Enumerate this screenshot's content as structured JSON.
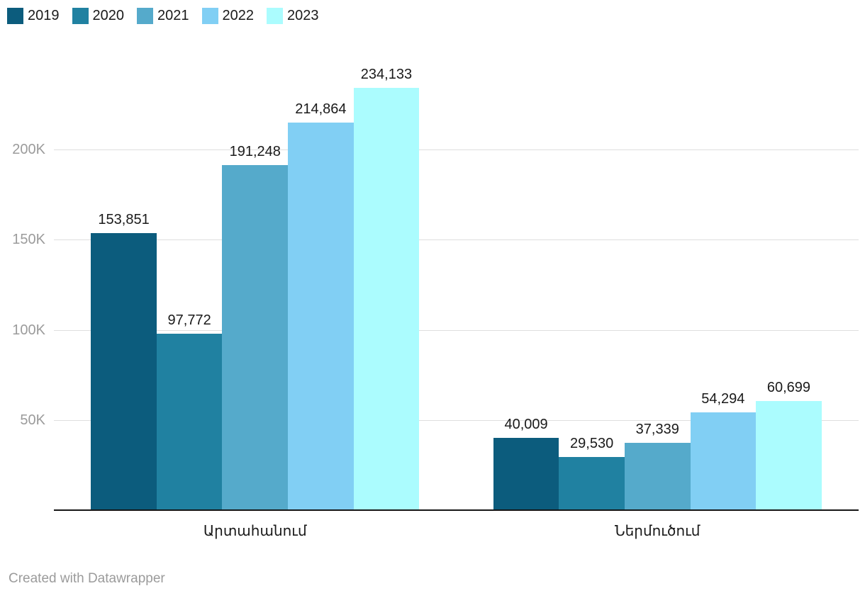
{
  "chart_data": {
    "type": "bar",
    "title": "",
    "xlabel": "",
    "ylabel": "",
    "categories": [
      "Արտահանում",
      "Ներմուծում"
    ],
    "series": [
      {
        "name": "2019",
        "color": "#0C5C7D",
        "values": [
          153851,
          40009
        ]
      },
      {
        "name": "2020",
        "color": "#2081A1",
        "values": [
          97772,
          29530
        ]
      },
      {
        "name": "2021",
        "color": "#55AACB",
        "values": [
          191248,
          37339
        ]
      },
      {
        "name": "2022",
        "color": "#81CFF4",
        "values": [
          214864,
          54294
        ]
      },
      {
        "name": "2023",
        "color": "#ABFCFE",
        "values": [
          234133,
          60699
        ]
      }
    ],
    "value_labels": [
      [
        "153,851",
        "97,772",
        "191,248",
        "214,864",
        "234,133"
      ],
      [
        "40,009",
        "29,530",
        "37,339",
        "54,294",
        "60,699"
      ]
    ],
    "yticks": [
      {
        "value": 50000,
        "label": "50K"
      },
      {
        "value": 100000,
        "label": "100K"
      },
      {
        "value": 150000,
        "label": "150K"
      },
      {
        "value": 200000,
        "label": "200K"
      }
    ],
    "ylim": [
      0,
      259400
    ],
    "grid": true,
    "legend_position": "top-left",
    "colors": {
      "axis_line": "#161616",
      "gridline": "#dedede",
      "tick_text": "#9b9b9b",
      "label_text": "#1a1a1a"
    }
  },
  "footer": {
    "credit": "Created with Datawrapper"
  }
}
